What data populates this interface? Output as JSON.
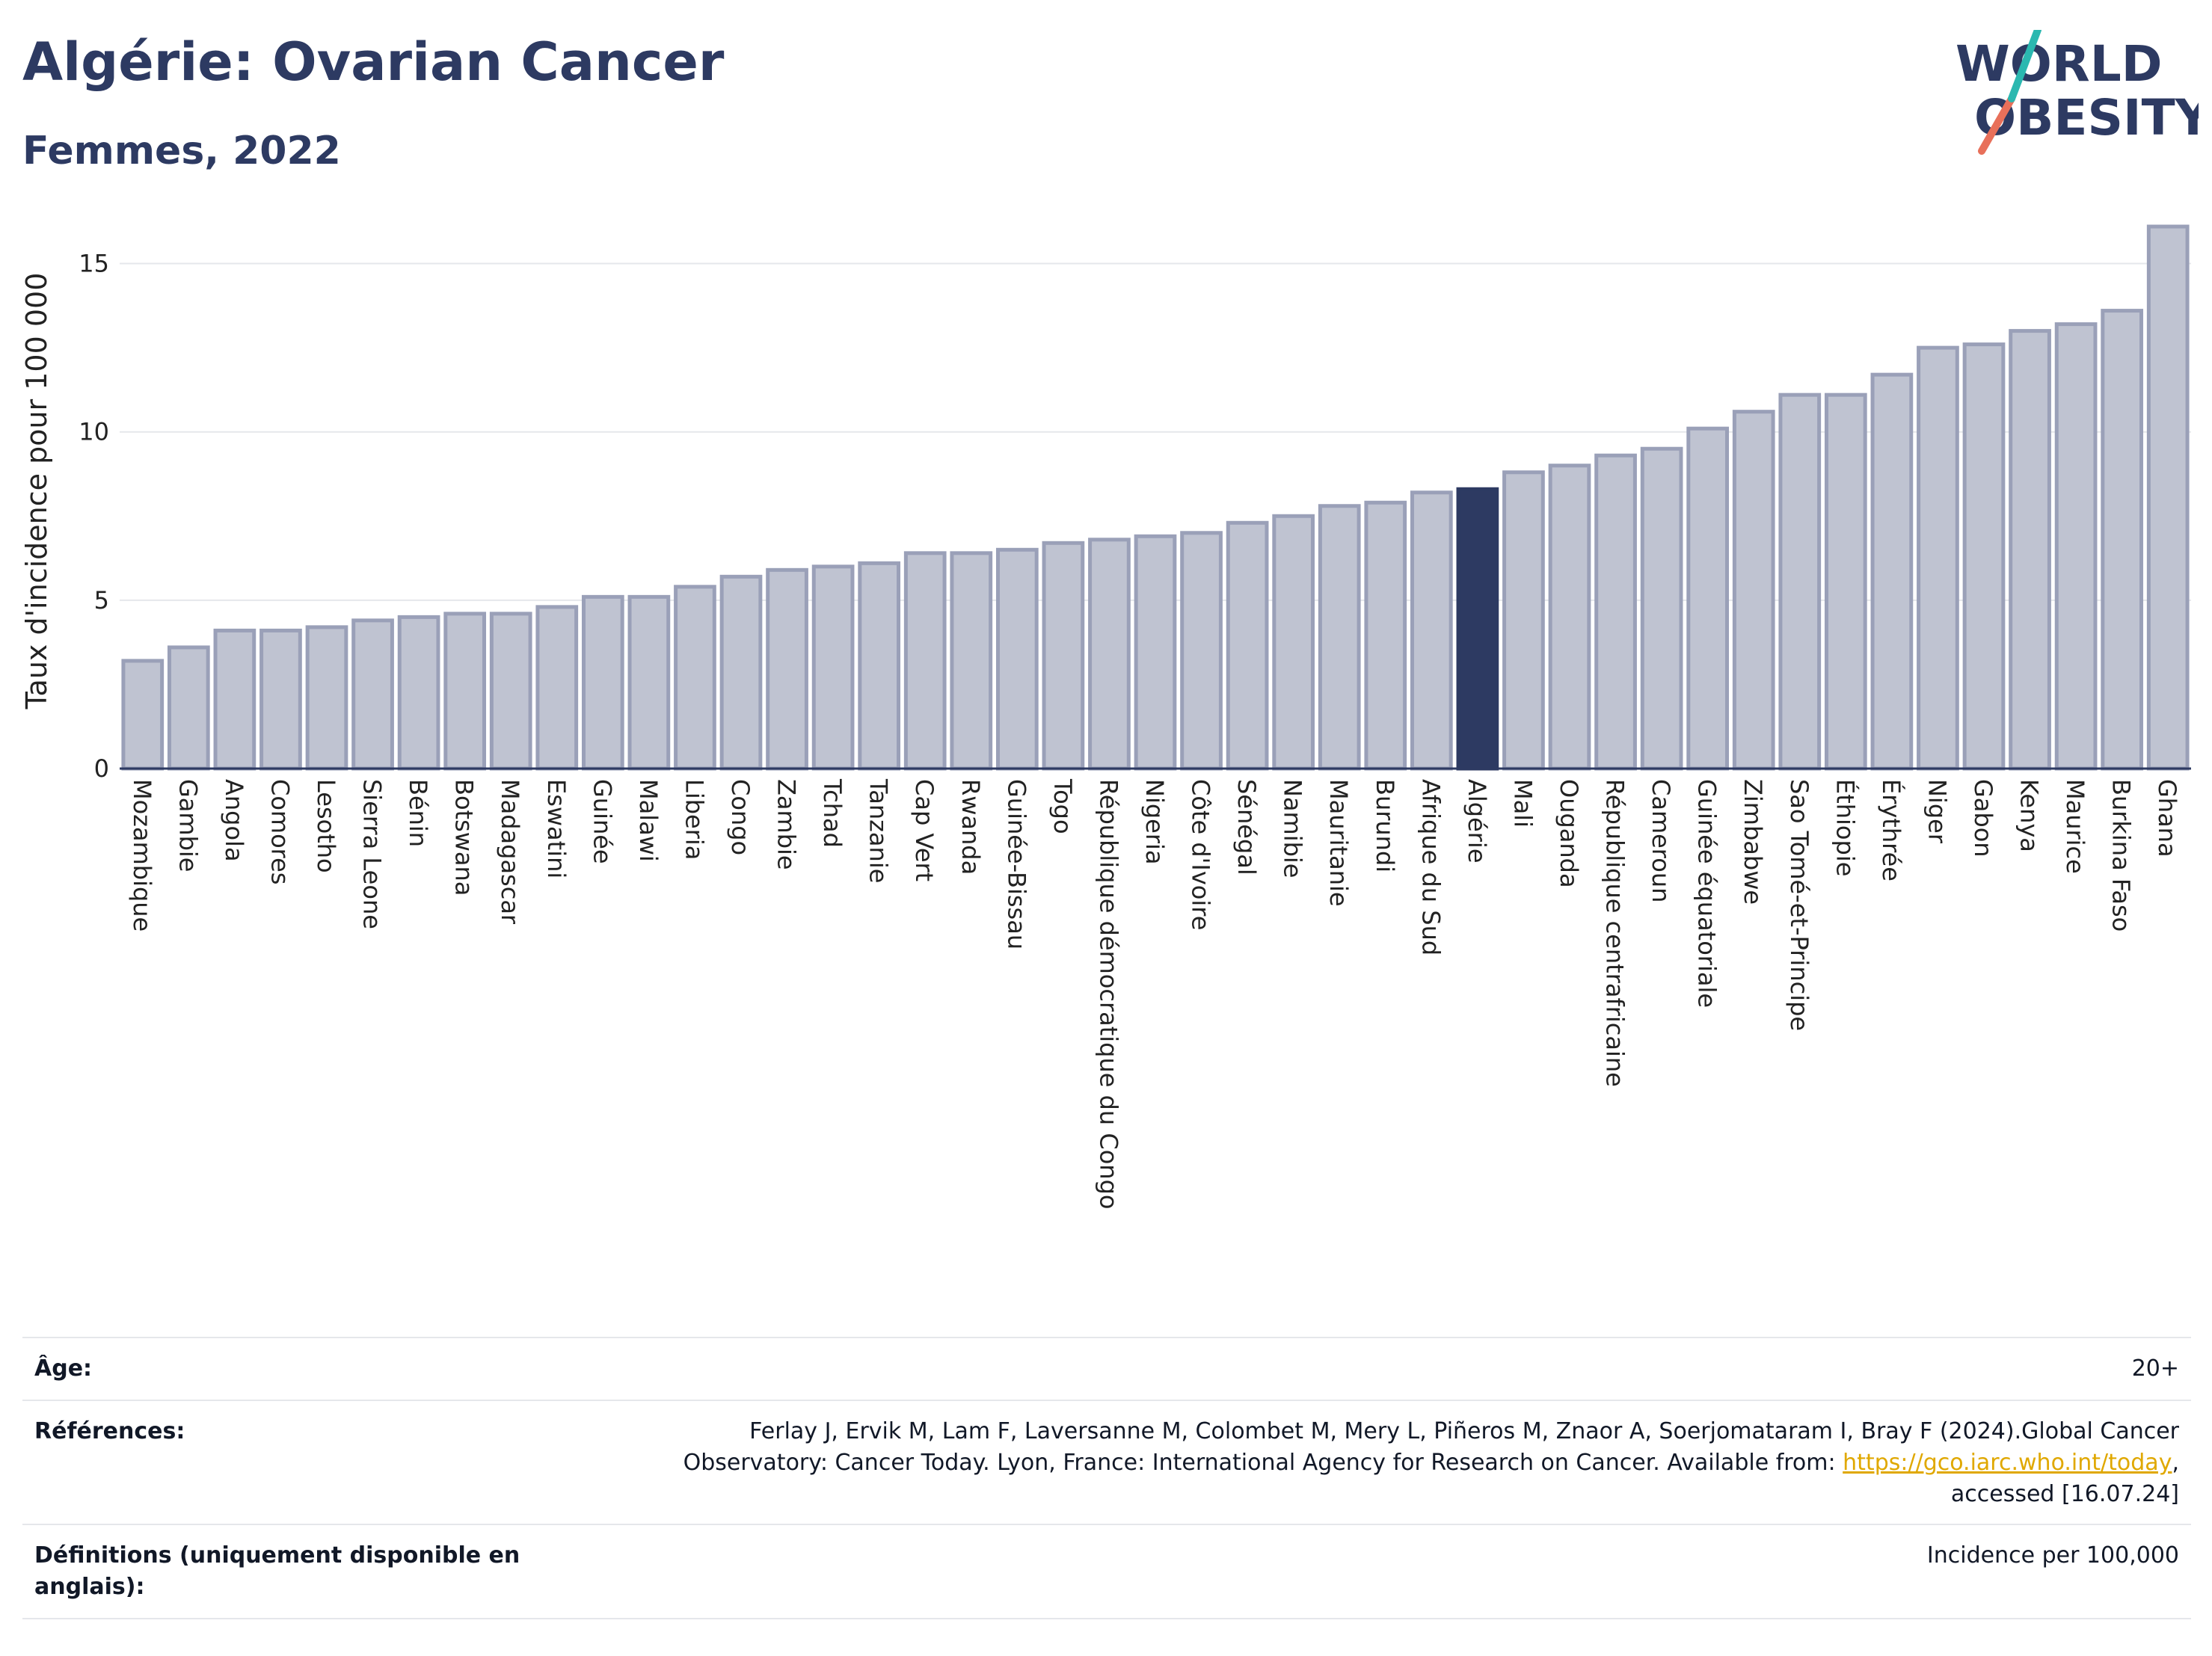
{
  "header": {
    "title": "Algérie: Ovarian Cancer",
    "subtitle": "Femmes, 2022"
  },
  "logo": {
    "line1": "WORLD",
    "line2": "OBESITY"
  },
  "chart_data": {
    "type": "bar",
    "ylabel": "Taux d'incidence pour 100 000",
    "xlabel": "",
    "ylim": [
      0,
      16.5
    ],
    "yticks": [
      0,
      5,
      10,
      15
    ],
    "grid": true,
    "highlight": "Algérie",
    "colors": {
      "bar": "#bfc3d1",
      "bar_edge": "#9aa0b8",
      "highlight": "#2d3a62",
      "axis": "#2d3a62",
      "grid": "#e5e7eb"
    },
    "categories": [
      "Mozambique",
      "Gambie",
      "Angola",
      "Comores",
      "Lesotho",
      "Sierra Leone",
      "Bénin",
      "Botswana",
      "Madagascar",
      "Eswatini",
      "Guinée",
      "Malawi",
      "Liberia",
      "Congo",
      "Zambie",
      "Tchad",
      "Tanzanie",
      "Cap Vert",
      "Rwanda",
      "Guinée-Bissau",
      "Togo",
      "République démocratique du Congo",
      "Nigeria",
      "Côte d'Ivoire",
      "Sénégal",
      "Namibie",
      "Mauritanie",
      "Burundi",
      "Afrique du Sud",
      "Algérie",
      "Mali",
      "Ouganda",
      "République centrafricaine",
      "Cameroun",
      "Guinée équatoriale",
      "Zimbabwe",
      "Sao Tomé-et-Principe",
      "Éthiopie",
      "Érythrée",
      "Niger",
      "Gabon",
      "Kenya",
      "Maurice",
      "Burkina Faso",
      "Ghana"
    ],
    "values": [
      3.2,
      3.6,
      4.1,
      4.1,
      4.2,
      4.4,
      4.5,
      4.6,
      4.6,
      4.8,
      5.1,
      5.1,
      5.4,
      5.7,
      5.9,
      6.0,
      6.1,
      6.4,
      6.4,
      6.5,
      6.7,
      6.8,
      6.9,
      7.0,
      7.3,
      7.5,
      7.8,
      7.9,
      8.2,
      8.3,
      8.8,
      9.0,
      9.3,
      9.5,
      10.1,
      10.6,
      11.1,
      11.1,
      11.7,
      12.5,
      12.6,
      13.0,
      13.2,
      13.6,
      16.1
    ]
  },
  "footer": {
    "age_label": "Âge:",
    "age_value": "20+",
    "refs_label": "Références:",
    "refs_line1": "Ferlay J, Ervik M, Lam F, Laversanne M, Colombet M, Mery L, Piñeros M, Znaor A, Soerjomataram I, Bray F (2024).Global Cancer",
    "refs_line2_pre": "Observatory: Cancer Today. Lyon, France: International Agency for Research on Cancer. Available from: ",
    "refs_link": "https://gco.iarc.who.int/today",
    "refs_line2_post": ",",
    "refs_line3": "accessed [16.07.24]",
    "defs_label_line1": "Définitions (uniquement disponible en",
    "defs_label_line2": "anglais):",
    "defs_value": "Incidence per 100,000"
  }
}
